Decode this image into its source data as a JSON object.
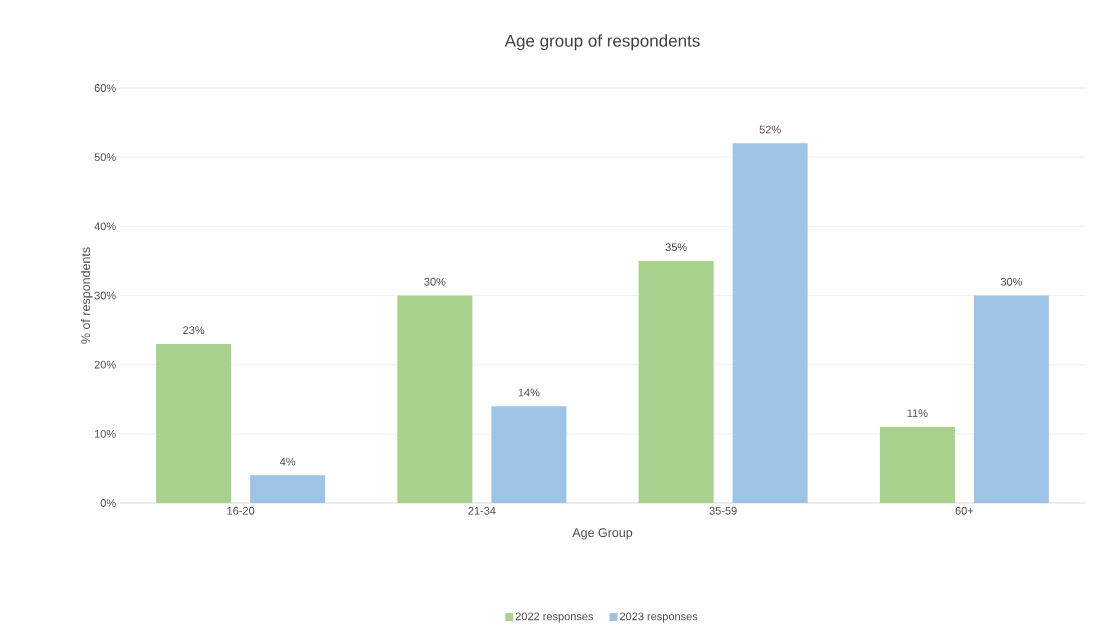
{
  "chart_data": {
    "type": "bar",
    "title": "Age group of respondents",
    "xlabel": "Age Group",
    "ylabel": "% of respondents",
    "categories": [
      "16-20",
      "21-34",
      "35-59",
      "60+"
    ],
    "series": [
      {
        "name": "2022 responses",
        "color": "#a9d18e",
        "values": [
          23,
          30,
          35,
          11
        ],
        "value_labels": [
          "23%",
          "30%",
          "35%",
          "11%"
        ]
      },
      {
        "name": "2023 responses",
        "color": "#9dc3e6",
        "values": [
          4,
          14,
          52,
          30
        ],
        "value_labels": [
          "4%",
          "14%",
          "52%",
          "30%"
        ]
      }
    ],
    "ylim": [
      0,
      60
    ],
    "yticks": [
      {
        "value": 0,
        "label": "0%"
      },
      {
        "value": 10,
        "label": "10%"
      },
      {
        "value": 20,
        "label": "20%"
      },
      {
        "value": 30,
        "label": "30%"
      },
      {
        "value": 40,
        "label": "40%"
      },
      {
        "value": 50,
        "label": "50%"
      },
      {
        "value": 60,
        "label": "60%"
      }
    ],
    "grid": "y",
    "legend": "bottom"
  }
}
